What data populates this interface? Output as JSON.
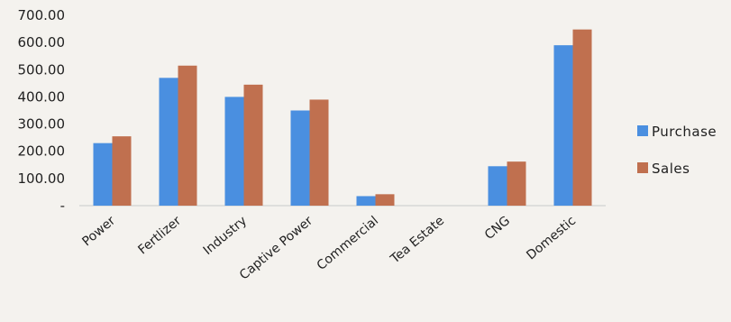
{
  "chart_data": {
    "type": "bar",
    "categories": [
      "Power",
      "Fertlizer",
      "Industry",
      "Captive Power",
      "Commercial",
      "Tea Estate",
      "CNG",
      "Domestic"
    ],
    "series": [
      {
        "name": "Purchase",
        "values": [
          230,
          470,
          400,
          350,
          35,
          0,
          145,
          590
        ],
        "color": "#4a8fe0"
      },
      {
        "name": "Sales",
        "values": [
          255,
          515,
          445,
          390,
          42,
          0,
          162,
          648
        ],
        "color": "#c0704f"
      }
    ],
    "y_tick_labels": [
      "-",
      "100.00",
      "200.00",
      "300.00",
      "400.00",
      "500.00",
      "600.00",
      "700.00"
    ],
    "y_ticks": [
      0,
      100,
      200,
      300,
      400,
      500,
      600,
      700
    ],
    "ylim": [
      0,
      700
    ],
    "axis_color": "#c9c9c9",
    "grid": false,
    "legend_position": "right",
    "title": "",
    "xlabel": "",
    "ylabel": ""
  }
}
